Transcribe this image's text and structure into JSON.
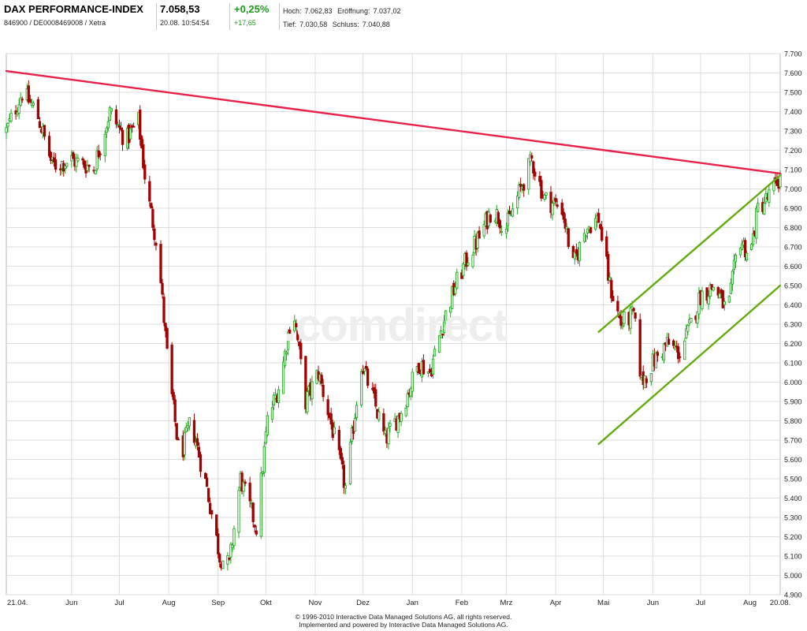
{
  "header": {
    "title": "DAX PERFORMANCE-INDEX",
    "identifiers": "846900 / DE0008469008 / Xetra",
    "price": "7.058,53",
    "date_time": "20.08. 10:54:54",
    "change_pct": "+0,25%",
    "change_abs": "+17,65",
    "high_label": "Hoch:",
    "high_value": "7.062,83",
    "open_label": "Eröffnung:",
    "open_value": "7.037,02",
    "low_label": "Tief:",
    "low_value": "7.030,58",
    "close_label": "Schluss:",
    "close_value": "7.040,88"
  },
  "watermark": ".comdirect",
  "footer": {
    "line1": "© 1996-2010 Interactive Data Managed Solutions AG, all rights reserved.",
    "line2": "Implemented and powered by Interactive Data Managed Solutions AG."
  },
  "colors": {
    "up_candle": "#22aa22",
    "down_candle": "#a00000",
    "resistance_line": "#e8204a",
    "channel_lines": "#66aa11",
    "grid": "#dddddd"
  },
  "chart_data": {
    "type": "candlestick",
    "title": "",
    "xlabel": "",
    "ylabel": "",
    "ylim": [
      4900,
      7700
    ],
    "y_ticks": [
      "4.900",
      "5.000",
      "5.100",
      "5.200",
      "5.300",
      "5.400",
      "5.500",
      "5.600",
      "5.700",
      "5.800",
      "5.900",
      "6.000",
      "6.100",
      "6.200",
      "6.300",
      "6.400",
      "6.500",
      "6.600",
      "6.700",
      "6.800",
      "6.900",
      "7.000",
      "7.100",
      "7.200",
      "7.300",
      "7.400",
      "7.500",
      "7.600",
      "7.700"
    ],
    "x_ticks": [
      "21.04.",
      "Jun",
      "Jul",
      "Aug",
      "Sep",
      "Okt",
      "Nov",
      "Dez",
      "Jan",
      "Feb",
      "Mrz",
      "Apr",
      "Mai",
      "Jun",
      "Jul",
      "Aug",
      "20.08."
    ],
    "grid": true,
    "close_path": [
      {
        "date": "2009-04-21",
        "close": 7300
      },
      {
        "date": "2009-05-01",
        "close": 7500
      },
      {
        "date": "2009-05-10",
        "close": 7400
      },
      {
        "date": "2009-05-20",
        "close": 7120
      },
      {
        "date": "2009-06-01",
        "close": 7150
      },
      {
        "date": "2009-06-15",
        "close": 7110
      },
      {
        "date": "2009-06-25",
        "close": 7400
      },
      {
        "date": "2009-07-05",
        "close": 7250
      },
      {
        "date": "2009-07-13",
        "close": 7350
      },
      {
        "date": "2009-07-18",
        "close": 7000
      },
      {
        "date": "2009-07-25",
        "close": 6700
      },
      {
        "date": "2009-08-01",
        "close": 6050
      },
      {
        "date": "2009-08-08",
        "close": 5600
      },
      {
        "date": "2009-08-15",
        "close": 5800
      },
      {
        "date": "2009-08-25",
        "close": 5450
      },
      {
        "date": "2009-09-02",
        "close": 5100
      },
      {
        "date": "2009-09-08",
        "close": 5050
      },
      {
        "date": "2009-09-15",
        "close": 5500
      },
      {
        "date": "2009-09-25",
        "close": 5250
      },
      {
        "date": "2009-10-02",
        "close": 5800
      },
      {
        "date": "2009-10-10",
        "close": 6000
      },
      {
        "date": "2009-10-18",
        "close": 6400
      },
      {
        "date": "2009-10-26",
        "close": 5900
      },
      {
        "date": "2009-11-03",
        "close": 6050
      },
      {
        "date": "2009-11-12",
        "close": 5750
      },
      {
        "date": "2009-11-20",
        "close": 5450
      },
      {
        "date": "2009-11-30",
        "close": 6100
      },
      {
        "date": "2009-12-08",
        "close": 5900
      },
      {
        "date": "2009-12-15",
        "close": 5700
      },
      {
        "date": "2009-12-25",
        "close": 5850
      },
      {
        "date": "2010-01-05",
        "close": 6100
      },
      {
        "date": "2010-01-12",
        "close": 6050
      },
      {
        "date": "2010-01-20",
        "close": 6300
      },
      {
        "date": "2010-01-28",
        "close": 6500
      },
      {
        "date": "2010-02-05",
        "close": 6650
      },
      {
        "date": "2010-02-12",
        "close": 6750
      },
      {
        "date": "2010-02-20",
        "close": 6900
      },
      {
        "date": "2010-03-01",
        "close": 6800
      },
      {
        "date": "2010-03-10",
        "close": 7000
      },
      {
        "date": "2010-03-17",
        "close": 7150
      },
      {
        "date": "2010-03-25",
        "close": 6950
      },
      {
        "date": "2010-04-05",
        "close": 6900
      },
      {
        "date": "2010-04-12",
        "close": 6600
      },
      {
        "date": "2010-04-20",
        "close": 6800
      },
      {
        "date": "2010-04-28",
        "close": 6850
      },
      {
        "date": "2010-05-05",
        "close": 6500
      },
      {
        "date": "2010-05-12",
        "close": 6300
      },
      {
        "date": "2010-05-20",
        "close": 6350
      },
      {
        "date": "2010-05-25",
        "close": 6000
      },
      {
        "date": "2010-06-01",
        "close": 6100
      },
      {
        "date": "2010-06-10",
        "close": 6200
      },
      {
        "date": "2010-06-18",
        "close": 6150
      },
      {
        "date": "2010-06-25",
        "close": 6300
      },
      {
        "date": "2010-07-01",
        "close": 6450
      },
      {
        "date": "2010-07-10",
        "close": 6500
      },
      {
        "date": "2010-07-18",
        "close": 6350
      },
      {
        "date": "2010-07-25",
        "close": 6750
      },
      {
        "date": "2010-08-01",
        "close": 6650
      },
      {
        "date": "2010-08-06",
        "close": 6900
      },
      {
        "date": "2010-08-12",
        "close": 6950
      },
      {
        "date": "2010-08-20",
        "close": 7058
      }
    ],
    "trend_lines": [
      {
        "name": "resistance",
        "color": "#e8204a",
        "points": [
          {
            "date": "2009-04-21",
            "value": 7610
          },
          {
            "date": "2010-08-20",
            "value": 7080
          }
        ]
      },
      {
        "name": "channel-upper",
        "color": "#66aa11",
        "points": [
          {
            "date": "2010-04-28",
            "value": 6260
          },
          {
            "date": "2010-08-20",
            "value": 7070
          }
        ]
      },
      {
        "name": "channel-lower",
        "color": "#66aa11",
        "points": [
          {
            "date": "2010-04-28",
            "value": 5680
          },
          {
            "date": "2010-08-20",
            "value": 6500
          }
        ]
      }
    ]
  }
}
